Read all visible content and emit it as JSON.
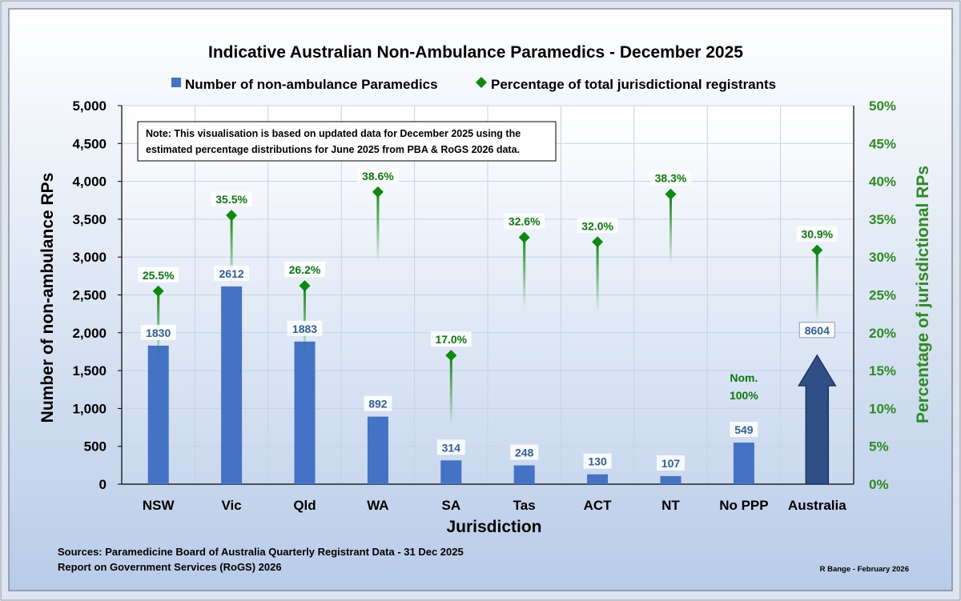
{
  "chart_data": {
    "type": "bar",
    "title": "Indicative Australian Non-Ambulance Paramedics - December 2025",
    "categories": [
      "NSW",
      "Vic",
      "Qld",
      "WA",
      "SA",
      "Tas",
      "ACT",
      "NT",
      "No PPP",
      "Australia"
    ],
    "series": [
      {
        "name": "Number of non-ambulance Paramedics",
        "axis": "left",
        "values": [
          1830,
          2612,
          1883,
          892,
          314,
          248,
          130,
          107,
          549,
          8604
        ],
        "value_labels": [
          "1830",
          "2612",
          "1883",
          "892",
          "314",
          "248",
          "130",
          "107",
          "549",
          "8604"
        ]
      },
      {
        "name": "Percentage of total jurisdictional registrants",
        "axis": "right",
        "marker": "diamond",
        "values": [
          25.5,
          35.5,
          26.2,
          38.6,
          17.0,
          32.6,
          32.0,
          38.3,
          null,
          30.9
        ],
        "value_labels": [
          "25.5%",
          "35.5%",
          "26.2%",
          "38.6%",
          "17.0%",
          "32.6%",
          "32.0%",
          "38.3%",
          "Nom. 100%",
          "30.9%"
        ]
      }
    ],
    "xlabel": "Jurisdiction",
    "ylabel": "Number of non-ambulance RPs",
    "y2label": "Percentage of jurisdictional RPs",
    "ylim": [
      0,
      5000
    ],
    "y2lim": [
      0,
      50
    ],
    "yticks": [
      "0",
      "500",
      "1,000",
      "1,500",
      "2,000",
      "2,500",
      "3,000",
      "3,500",
      "4,000",
      "4,500",
      "5,000"
    ],
    "y2ticks": [
      "0%",
      "5%",
      "10%",
      "15%",
      "20%",
      "25%",
      "30%",
      "35%",
      "40%",
      "45%",
      "50%"
    ],
    "note": [
      "Note: This visualisation is based on updated data for December 2025 using the",
      "estimated percentage distributions for June 2025 from PBA & RoGS 2026 data."
    ],
    "sources": [
      "Sources: Paramedicine Board of Australia Quarterly Registrant Data - 31 Dec 2025",
      "Report on Government Services (RoGS) 2026"
    ],
    "credit": "R Bange - February 2026",
    "legend_position": "top",
    "grid": true,
    "colors": {
      "bar": "#4472c4",
      "arrow_fill": "#2f4f86",
      "arrow_stroke": "#1e3560",
      "marker": "#0b8a0b",
      "value_text": "#2e5f9e",
      "pct_text": "#0a7a0a",
      "y2_text": "#2e8b1f",
      "grid": "#c5d2e8",
      "axis": "#000000"
    }
  }
}
